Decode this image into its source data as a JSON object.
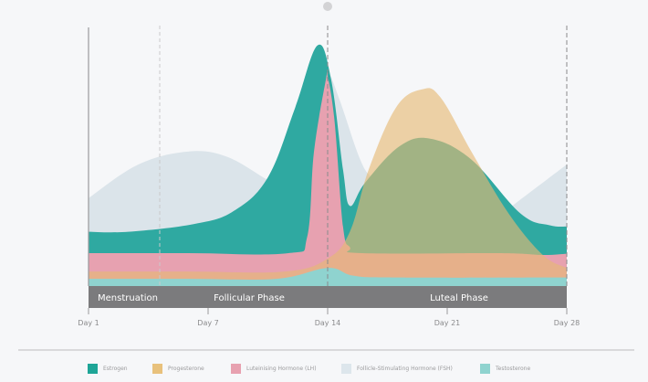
{
  "chart_data": {
    "type": "area",
    "title": "",
    "xlabel": "",
    "ylabel": "",
    "x_ticks": [
      {
        "day": 1,
        "label": "Day 1"
      },
      {
        "day": 7,
        "label": "Day 7"
      },
      {
        "day": 14,
        "label": "Day 14"
      },
      {
        "day": 21,
        "label": "Day 21"
      },
      {
        "day": 28,
        "label": "Day 28"
      }
    ],
    "xlim": [
      1,
      28
    ],
    "ylim": [
      0,
      100
    ],
    "grid": false,
    "legend_position": "bottom",
    "phases": [
      {
        "label": "Menstruation",
        "start": 1,
        "end": 4.6
      },
      {
        "label": "Follicular Phase",
        "start": 4.6,
        "end": 14
      },
      {
        "label": "Luteal Phase",
        "start": 14,
        "end": 28
      }
    ],
    "series": [
      {
        "name": "Follicle-Stimulating Hormone (FSH)",
        "color": "#dbe4ea",
        "opacity": 1,
        "points": [
          [
            1,
            34
          ],
          [
            3.5,
            47
          ],
          [
            6,
            52
          ],
          [
            8.1,
            50
          ],
          [
            10.5,
            41
          ],
          [
            12,
            36
          ],
          [
            13,
            55
          ],
          [
            13.6,
            78
          ],
          [
            14,
            83
          ],
          [
            14.7,
            72
          ],
          [
            15.9,
            49
          ],
          [
            16.7,
            41
          ],
          [
            18.5,
            28
          ],
          [
            21,
            20
          ],
          [
            23,
            22
          ],
          [
            25,
            32
          ],
          [
            28,
            47
          ]
        ]
      },
      {
        "name": "Estrogen",
        "color": "#2fa9a1",
        "opacity": 1,
        "points": [
          [
            1,
            21
          ],
          [
            3,
            21
          ],
          [
            6.3,
            24
          ],
          [
            8.5,
            29
          ],
          [
            10.5,
            42
          ],
          [
            12.1,
            69
          ],
          [
            13.4,
            93
          ],
          [
            14.2,
            80
          ],
          [
            14.9,
            45
          ],
          [
            15.3,
            31
          ],
          [
            16.2,
            40
          ],
          [
            18.2,
            54
          ],
          [
            20,
            57
          ],
          [
            22.4,
            49
          ],
          [
            25.3,
            28
          ],
          [
            27,
            23.5
          ],
          [
            28,
            23
          ]
        ]
      },
      {
        "name": "Luteinising Hormone (LH)",
        "color": "#e7a1b0",
        "opacity": 1,
        "points": [
          [
            1,
            12.7
          ],
          [
            6,
            12.7
          ],
          [
            11.7,
            12.7
          ],
          [
            12.8,
            19
          ],
          [
            13.2,
            52
          ],
          [
            13.9,
            80
          ],
          [
            14,
            81
          ],
          [
            14.4,
            64
          ],
          [
            14.9,
            23
          ],
          [
            15.3,
            15
          ],
          [
            16,
            12.7
          ],
          [
            24,
            12.7
          ],
          [
            26.6,
            12
          ],
          [
            28,
            12.5
          ]
        ]
      },
      {
        "name": "Progesterone",
        "color": "#e5b974",
        "opacity": 0.63,
        "points": [
          [
            1,
            5.6
          ],
          [
            6,
            5.6
          ],
          [
            11.5,
            5.6
          ],
          [
            14,
            10.6
          ],
          [
            15.3,
            21
          ],
          [
            16.4,
            45
          ],
          [
            18,
            69
          ],
          [
            19.5,
            76
          ],
          [
            20.6,
            73
          ],
          [
            22.5,
            51
          ],
          [
            24.6,
            28
          ],
          [
            26.6,
            12
          ],
          [
            28,
            7
          ]
        ]
      },
      {
        "name": "Testosterone",
        "color": "#8fd3cf",
        "opacity": 1,
        "points": [
          [
            1,
            2.8
          ],
          [
            6,
            2.8
          ],
          [
            11,
            2.8
          ],
          [
            14,
            7
          ],
          [
            15.5,
            4
          ],
          [
            18,
            3.3
          ],
          [
            28,
            3.3
          ]
        ]
      }
    ]
  },
  "legend": [
    {
      "label": "Estrogen",
      "color": "#1ea597"
    },
    {
      "label": "Progesterone",
      "color": "#e8c17c"
    },
    {
      "label": "Luteinising Hormone (LH)",
      "color": "#e7a1b0"
    },
    {
      "label": "Follicle-Stimulating Hormone (FSH)",
      "color": "#dde6ec"
    },
    {
      "label": "Testosterone",
      "color": "#8fd3cf"
    }
  ],
  "colors": {
    "band": "#7b7b7d",
    "axis": "#9a9a9c"
  }
}
